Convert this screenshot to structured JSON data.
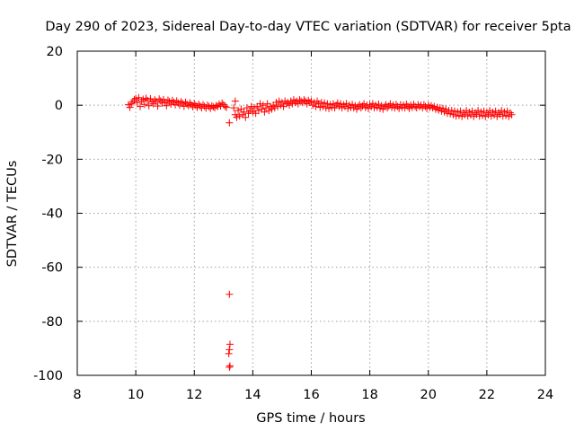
{
  "chart_data": {
    "type": "scatter",
    "title": "Day 290 of 2023, Sidereal Day-to-day VTEC variation (SDTVAR) for receiver 5pta",
    "xlabel": "GPS time / hours",
    "ylabel": "SDTVAR / TECUs",
    "xlim": [
      8,
      24
    ],
    "ylim": [
      -100,
      20
    ],
    "x_ticks": [
      8,
      10,
      12,
      14,
      16,
      18,
      20,
      22,
      24
    ],
    "y_ticks": [
      20,
      0,
      -20,
      -40,
      -60,
      -80,
      -100
    ],
    "grid": true,
    "color": "#ff0000",
    "marker": "plus",
    "series": [
      {
        "name": "SDTVAR",
        "points": [
          [
            9.75,
            0.2
          ],
          [
            9.8,
            -0.8
          ],
          [
            9.85,
            0.6
          ],
          [
            9.9,
            1.2
          ],
          [
            9.95,
            2.0
          ],
          [
            10.0,
            2.5
          ],
          [
            10.05,
            1.0
          ],
          [
            10.1,
            2.8
          ],
          [
            10.15,
            -0.5
          ],
          [
            10.2,
            1.5
          ],
          [
            10.25,
            2.2
          ],
          [
            10.3,
            0.3
          ],
          [
            10.35,
            2.6
          ],
          [
            10.4,
            1.8
          ],
          [
            10.45,
            -0.2
          ],
          [
            10.5,
            2.4
          ],
          [
            10.55,
            1.2
          ],
          [
            10.6,
            0.5
          ],
          [
            10.65,
            2.0
          ],
          [
            10.7,
            1.4
          ],
          [
            10.75,
            -0.3
          ],
          [
            10.8,
            2.3
          ],
          [
            10.85,
            1.6
          ],
          [
            10.9,
            0.8
          ],
          [
            10.95,
            2.1
          ],
          [
            11.0,
            1.0
          ],
          [
            11.05,
            -0.2
          ],
          [
            11.1,
            1.9
          ],
          [
            11.15,
            1.4
          ],
          [
            11.2,
            0.4
          ],
          [
            11.25,
            1.8
          ],
          [
            11.3,
            1.1
          ],
          [
            11.35,
            0.2
          ],
          [
            11.4,
            1.6
          ],
          [
            11.45,
            0.8
          ],
          [
            11.5,
            0.0
          ],
          [
            11.55,
            1.3
          ],
          [
            11.6,
            0.7
          ],
          [
            11.65,
            -0.4
          ],
          [
            11.7,
            1.1
          ],
          [
            11.75,
            0.4
          ],
          [
            11.8,
            -0.2
          ],
          [
            11.85,
            0.9
          ],
          [
            11.9,
            0.2
          ],
          [
            11.95,
            -0.6
          ],
          [
            12.0,
            0.6
          ],
          [
            12.05,
            -0.1
          ],
          [
            12.1,
            -0.8
          ],
          [
            12.15,
            0.4
          ],
          [
            12.2,
            -0.3
          ],
          [
            12.25,
            -1.0
          ],
          [
            12.3,
            0.2
          ],
          [
            12.35,
            -0.4
          ],
          [
            12.4,
            -1.1
          ],
          [
            12.45,
            0.0
          ],
          [
            12.5,
            -0.5
          ],
          [
            12.55,
            -1.2
          ],
          [
            12.6,
            -0.2
          ],
          [
            12.65,
            -0.6
          ],
          [
            12.7,
            -1.0
          ],
          [
            12.75,
            -0.1
          ],
          [
            12.8,
            -0.5
          ],
          [
            12.85,
            0.4
          ],
          [
            12.9,
            -0.3
          ],
          [
            12.95,
            0.8
          ],
          [
            13.0,
            0.2
          ],
          [
            13.05,
            -0.4
          ],
          [
            13.1,
            -0.8
          ],
          [
            13.2,
            -6.5
          ],
          [
            13.2,
            -70
          ],
          [
            13.22,
            -88.5
          ],
          [
            13.2,
            -90.5
          ],
          [
            13.18,
            -92
          ],
          [
            13.22,
            -96.5
          ],
          [
            13.2,
            -97
          ],
          [
            13.35,
            -1.0
          ],
          [
            13.4,
            -3.5
          ],
          [
            13.4,
            1.5
          ],
          [
            13.45,
            -4.5
          ],
          [
            13.5,
            -2.0
          ],
          [
            13.55,
            -4.0
          ],
          [
            13.6,
            -1.5
          ],
          [
            13.65,
            -3.5
          ],
          [
            13.7,
            -2.5
          ],
          [
            13.75,
            -4.5
          ],
          [
            13.8,
            -1.0
          ],
          [
            13.85,
            -3.0
          ],
          [
            13.9,
            -2.0
          ],
          [
            13.95,
            -0.5
          ],
          [
            14.0,
            -2.5
          ],
          [
            14.05,
            -1.0
          ],
          [
            14.1,
            -3.0
          ],
          [
            14.15,
            -0.5
          ],
          [
            14.2,
            -2.0
          ],
          [
            14.25,
            0.5
          ],
          [
            14.3,
            -1.5
          ],
          [
            14.35,
            0.0
          ],
          [
            14.4,
            -2.5
          ],
          [
            14.45,
            -1.0
          ],
          [
            14.5,
            0.5
          ],
          [
            14.55,
            -2.0
          ],
          [
            14.6,
            -0.5
          ],
          [
            14.65,
            -1.5
          ],
          [
            14.7,
            0.0
          ],
          [
            14.75,
            -1.0
          ],
          [
            14.8,
            1.0
          ],
          [
            14.85,
            -0.5
          ],
          [
            14.9,
            1.5
          ],
          [
            14.95,
            0.0
          ],
          [
            15.0,
            1.0
          ],
          [
            15.05,
            -0.5
          ],
          [
            15.1,
            1.5
          ],
          [
            15.15,
            0.5
          ],
          [
            15.2,
            1.0
          ],
          [
            15.25,
            0.0
          ],
          [
            15.3,
            1.5
          ],
          [
            15.35,
            0.5
          ],
          [
            15.4,
            2.0
          ],
          [
            15.45,
            1.0
          ],
          [
            15.5,
            1.5
          ],
          [
            15.55,
            0.5
          ],
          [
            15.6,
            2.0
          ],
          [
            15.65,
            1.5
          ],
          [
            15.7,
            1.0
          ],
          [
            15.75,
            2.0
          ],
          [
            15.8,
            1.5
          ],
          [
            15.85,
            0.5
          ],
          [
            15.9,
            1.8
          ],
          [
            15.95,
            1.0
          ],
          [
            16.0,
            1.5
          ],
          [
            16.05,
            0.0
          ],
          [
            16.1,
            1.0
          ],
          [
            16.15,
            -0.5
          ],
          [
            16.2,
            1.5
          ],
          [
            16.25,
            0.5
          ],
          [
            16.3,
            -0.8
          ],
          [
            16.35,
            1.0
          ],
          [
            16.4,
            -0.5
          ],
          [
            16.45,
            0.8
          ],
          [
            16.5,
            -1.0
          ],
          [
            16.55,
            0.5
          ],
          [
            16.6,
            -1.2
          ],
          [
            16.65,
            0.2
          ],
          [
            16.7,
            -0.8
          ],
          [
            16.75,
            0.5
          ],
          [
            16.8,
            -1.0
          ],
          [
            16.85,
            0.0
          ],
          [
            16.9,
            0.8
          ],
          [
            16.95,
            -0.5
          ],
          [
            17.0,
            0.5
          ],
          [
            17.05,
            -1.0
          ],
          [
            17.1,
            0.2
          ],
          [
            17.15,
            -0.5
          ],
          [
            17.2,
            0.6
          ],
          [
            17.25,
            -1.2
          ],
          [
            17.3,
            0.0
          ],
          [
            17.35,
            -0.8
          ],
          [
            17.4,
            0.3
          ],
          [
            17.45,
            -1.0
          ],
          [
            17.5,
            -0.2
          ],
          [
            17.55,
            -1.5
          ],
          [
            17.6,
            -0.5
          ],
          [
            17.65,
            0.2
          ],
          [
            17.7,
            -1.0
          ],
          [
            17.75,
            -0.3
          ],
          [
            17.8,
            0.5
          ],
          [
            17.85,
            -0.8
          ],
          [
            17.9,
            0.0
          ],
          [
            17.95,
            -1.2
          ],
          [
            18.0,
            0.2
          ],
          [
            18.05,
            -0.5
          ],
          [
            18.1,
            0.6
          ],
          [
            18.15,
            -1.0
          ],
          [
            18.2,
            0.0
          ],
          [
            18.25,
            -0.8
          ],
          [
            18.3,
            0.4
          ],
          [
            18.35,
            -1.2
          ],
          [
            18.4,
            -0.2
          ],
          [
            18.45,
            -1.5
          ],
          [
            18.5,
            -0.5
          ],
          [
            18.55,
            0.2
          ],
          [
            18.6,
            -1.0
          ],
          [
            18.65,
            -0.3
          ],
          [
            18.7,
            0.5
          ],
          [
            18.75,
            -0.8
          ],
          [
            18.8,
            0.0
          ],
          [
            18.85,
            -1.0
          ],
          [
            18.9,
            0.3
          ],
          [
            18.95,
            -0.5
          ],
          [
            19.0,
            -1.2
          ],
          [
            19.05,
            0.2
          ],
          [
            19.1,
            -0.8
          ],
          [
            19.15,
            0.0
          ],
          [
            19.2,
            -1.0
          ],
          [
            19.25,
            0.4
          ],
          [
            19.3,
            -0.5
          ],
          [
            19.35,
            -1.2
          ],
          [
            19.4,
            0.0
          ],
          [
            19.45,
            -0.8
          ],
          [
            19.5,
            0.3
          ],
          [
            19.55,
            -0.5
          ],
          [
            19.6,
            -1.0
          ],
          [
            19.65,
            0.2
          ],
          [
            19.7,
            -0.6
          ],
          [
            19.75,
            0.0
          ],
          [
            19.8,
            -1.0
          ],
          [
            19.85,
            0.2
          ],
          [
            19.9,
            -0.5
          ],
          [
            19.95,
            -1.2
          ],
          [
            20.0,
            0.0
          ],
          [
            20.05,
            -0.8
          ],
          [
            20.1,
            -0.2
          ],
          [
            20.15,
            -1.0
          ],
          [
            20.2,
            -0.5
          ],
          [
            20.25,
            -1.5
          ],
          [
            20.3,
            -0.8
          ],
          [
            20.35,
            -1.8
          ],
          [
            20.4,
            -1.0
          ],
          [
            20.45,
            -2.2
          ],
          [
            20.5,
            -1.2
          ],
          [
            20.55,
            -2.5
          ],
          [
            20.6,
            -1.5
          ],
          [
            20.65,
            -3.0
          ],
          [
            20.7,
            -2.0
          ],
          [
            20.75,
            -3.2
          ],
          [
            20.8,
            -2.0
          ],
          [
            20.85,
            -3.5
          ],
          [
            20.9,
            -2.2
          ],
          [
            20.95,
            -4.0
          ],
          [
            21.0,
            -2.5
          ],
          [
            21.05,
            -3.8
          ],
          [
            21.1,
            -2.2
          ],
          [
            21.15,
            -4.2
          ],
          [
            21.2,
            -2.8
          ],
          [
            21.25,
            -3.5
          ],
          [
            21.3,
            -2.0
          ],
          [
            21.35,
            -4.0
          ],
          [
            21.4,
            -2.6
          ],
          [
            21.45,
            -3.6
          ],
          [
            21.5,
            -2.2
          ],
          [
            21.55,
            -4.2
          ],
          [
            21.6,
            -2.8
          ],
          [
            21.65,
            -3.4
          ],
          [
            21.7,
            -2.0
          ],
          [
            21.75,
            -4.0
          ],
          [
            21.8,
            -2.5
          ],
          [
            21.85,
            -3.8
          ],
          [
            21.9,
            -2.2
          ],
          [
            21.95,
            -4.2
          ],
          [
            22.0,
            -2.8
          ],
          [
            22.05,
            -3.5
          ],
          [
            22.1,
            -2.0
          ],
          [
            22.15,
            -4.0
          ],
          [
            22.2,
            -2.6
          ],
          [
            22.25,
            -3.6
          ],
          [
            22.3,
            -2.2
          ],
          [
            22.35,
            -4.2
          ],
          [
            22.4,
            -2.8
          ],
          [
            22.45,
            -3.4
          ],
          [
            22.5,
            -2.0
          ],
          [
            22.55,
            -4.0
          ],
          [
            22.6,
            -2.5
          ],
          [
            22.65,
            -3.8
          ],
          [
            22.7,
            -2.2
          ],
          [
            22.75,
            -4.2
          ],
          [
            22.8,
            -2.8
          ],
          [
            22.85,
            -3.5
          ]
        ]
      }
    ]
  }
}
